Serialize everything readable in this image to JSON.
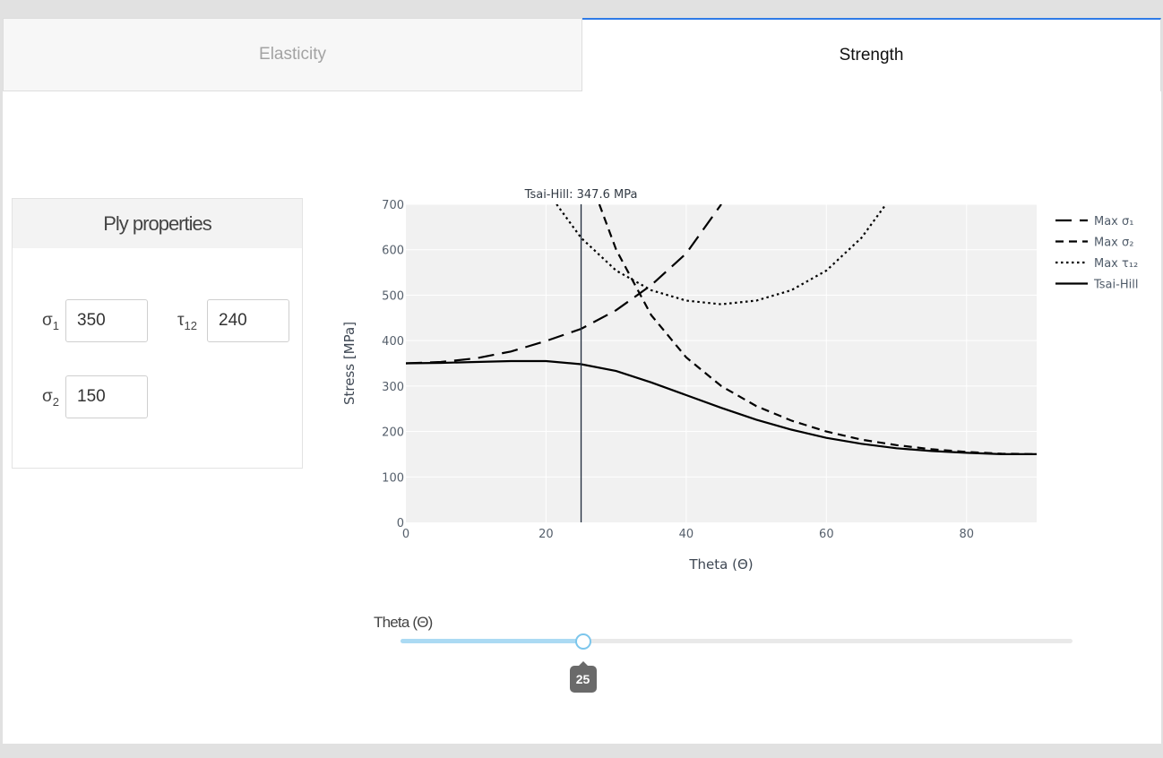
{
  "tabs": [
    {
      "label": "Elasticity",
      "active": false
    },
    {
      "label": "Strength",
      "active": true
    }
  ],
  "ply_card": {
    "title": "Ply properties",
    "fields": {
      "sigma1": {
        "symbol": "σ",
        "sub": "1",
        "value": "350"
      },
      "tau12": {
        "symbol": "τ",
        "sub": "12",
        "value": "240"
      },
      "sigma2": {
        "symbol": "σ",
        "sub": "2",
        "value": "150"
      }
    }
  },
  "slider": {
    "label": "Theta (Θ)",
    "value": 25,
    "min": 0,
    "max": 90,
    "value_label": "25",
    "colors": {
      "fill": "#abdaf3",
      "handle": "#7cc6ec",
      "tooltip": "#6a6a6a"
    }
  },
  "chart_data": {
    "type": "line",
    "xlabel": "Theta (Θ)",
    "ylabel": "Stress [MPa]",
    "xlim": [
      0,
      90
    ],
    "ylim": [
      0,
      700
    ],
    "xticks": [
      0,
      20,
      40,
      60,
      80
    ],
    "yticks": [
      0,
      100,
      200,
      300,
      400,
      500,
      600,
      700
    ],
    "grid": true,
    "plot_background": "#f1f1f1",
    "legend_position": "right",
    "marker": {
      "x": 25,
      "annotation": "Tsai-Hill: 347.6 MPa"
    },
    "series": [
      {
        "name": "Max σ₁",
        "dash": "long-dash",
        "points": [
          [
            0,
            350
          ],
          [
            5,
            353
          ],
          [
            10,
            361
          ],
          [
            15,
            376
          ],
          [
            20,
            399
          ],
          [
            25,
            426
          ],
          [
            30,
            467
          ],
          [
            35,
            522
          ],
          [
            40,
            592
          ],
          [
            45,
            700
          ]
        ]
      },
      {
        "name": "Max σ₂",
        "dash": "dash",
        "points": [
          [
            27.6,
            700
          ],
          [
            30,
            600
          ],
          [
            35,
            456
          ],
          [
            40,
            363
          ],
          [
            45,
            300
          ],
          [
            50,
            256
          ],
          [
            55,
            224
          ],
          [
            60,
            200
          ],
          [
            65,
            182
          ],
          [
            70,
            170
          ],
          [
            75,
            161
          ],
          [
            80,
            155
          ],
          [
            85,
            151
          ],
          [
            90,
            150
          ]
        ]
      },
      {
        "name": "Max τ₁₂",
        "dash": "dot",
        "points": [
          [
            21.5,
            700
          ],
          [
            25,
            626
          ],
          [
            30,
            554
          ],
          [
            35,
            511
          ],
          [
            40,
            488
          ],
          [
            45,
            480
          ],
          [
            50,
            488
          ],
          [
            55,
            511
          ],
          [
            60,
            554
          ],
          [
            65,
            626
          ],
          [
            68.5,
            700
          ]
        ]
      },
      {
        "name": "Tsai-Hill",
        "dash": "solid",
        "points": [
          [
            0,
            350
          ],
          [
            5,
            351
          ],
          [
            10,
            353
          ],
          [
            15,
            355
          ],
          [
            20,
            355
          ],
          [
            25,
            348
          ],
          [
            30,
            333
          ],
          [
            35,
            308
          ],
          [
            40,
            280
          ],
          [
            45,
            252
          ],
          [
            50,
            226
          ],
          [
            55,
            204
          ],
          [
            60,
            186
          ],
          [
            65,
            173
          ],
          [
            70,
            163
          ],
          [
            75,
            157
          ],
          [
            80,
            153
          ],
          [
            85,
            150
          ],
          [
            90,
            150
          ]
        ]
      }
    ]
  }
}
